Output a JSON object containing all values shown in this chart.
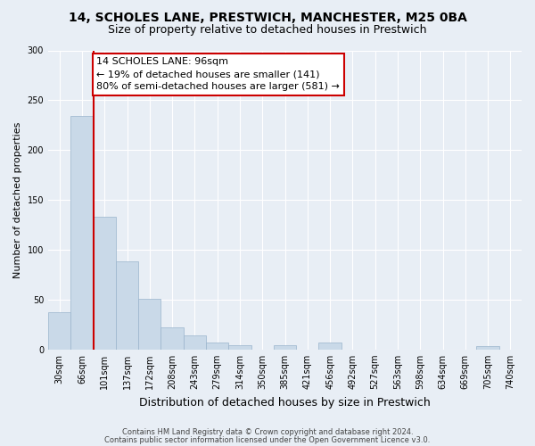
{
  "title1": "14, SCHOLES LANE, PRESTWICH, MANCHESTER, M25 0BA",
  "title2": "Size of property relative to detached houses in Prestwich",
  "xlabel": "Distribution of detached houses by size in Prestwich",
  "ylabel": "Number of detached properties",
  "footer1": "Contains HM Land Registry data © Crown copyright and database right 2024.",
  "footer2": "Contains public sector information licensed under the Open Government Licence v3.0.",
  "bin_labels": [
    "30sqm",
    "66sqm",
    "101sqm",
    "137sqm",
    "172sqm",
    "208sqm",
    "243sqm",
    "279sqm",
    "314sqm",
    "350sqm",
    "385sqm",
    "421sqm",
    "456sqm",
    "492sqm",
    "527sqm",
    "563sqm",
    "598sqm",
    "634sqm",
    "669sqm",
    "705sqm",
    "740sqm"
  ],
  "bar_values": [
    37,
    234,
    133,
    88,
    51,
    22,
    14,
    7,
    4,
    0,
    4,
    0,
    7,
    0,
    0,
    0,
    0,
    0,
    0,
    3,
    0
  ],
  "bar_color": "#c9d9e8",
  "bar_edge_color": "#9ab4cc",
  "bar_width": 1.0,
  "vline_x_idx": 1.5,
  "vline_color": "#cc0000",
  "annotation_line1": "14 SCHOLES LANE: 96sqm",
  "annotation_line2": "← 19% of detached houses are smaller (141)",
  "annotation_line3": "80% of semi-detached houses are larger (581) →",
  "annotation_box_color": "#ffffff",
  "annotation_box_edge": "#cc0000",
  "ylim": [
    0,
    300
  ],
  "yticks": [
    0,
    50,
    100,
    150,
    200,
    250,
    300
  ],
  "bg_color": "#e8eef5",
  "plot_bg_color": "#e8eef5",
  "grid_color": "#ffffff",
  "title1_fontsize": 10,
  "title2_fontsize": 9,
  "xlabel_fontsize": 9,
  "ylabel_fontsize": 8,
  "tick_fontsize": 7,
  "annotation_fontsize": 8,
  "footer_fontsize": 6
}
